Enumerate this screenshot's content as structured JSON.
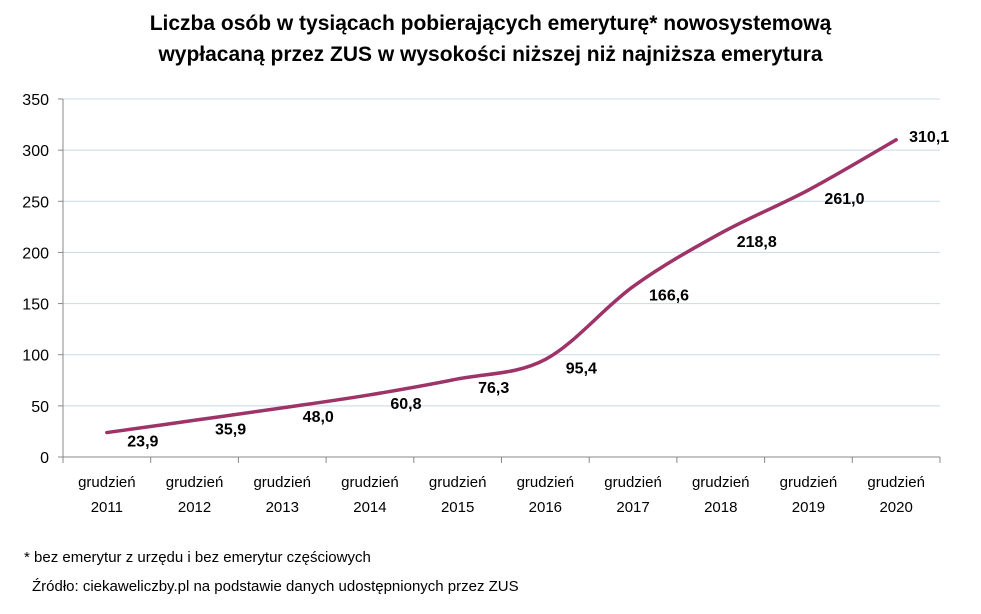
{
  "chart_data": {
    "type": "line",
    "title_line1": "Liczba osób w tysiącach pobierających emeryturę* nowosystemową",
    "title_line2": "wypłacaną przez ZUS w wysokości niższej niż najniższa emerytura",
    "categories": [
      [
        "grudzień",
        "2011"
      ],
      [
        "grudzień",
        "2012"
      ],
      [
        "grudzień",
        "2013"
      ],
      [
        "grudzień",
        "2014"
      ],
      [
        "grudzień",
        "2015"
      ],
      [
        "grudzień",
        "2016"
      ],
      [
        "grudzień",
        "2017"
      ],
      [
        "grudzień",
        "2018"
      ],
      [
        "grudzień",
        "2019"
      ],
      [
        "grudzień",
        "2020"
      ]
    ],
    "values": [
      23.9,
      35.9,
      48.0,
      60.8,
      76.3,
      95.4,
      166.6,
      218.8,
      261.0,
      310.1
    ],
    "data_labels": [
      "23,9",
      "35,9",
      "48,0",
      "60,8",
      "76,3",
      "95,4",
      "166,6",
      "218,8",
      "261,0",
      "310,1"
    ],
    "ylim": [
      0,
      350
    ],
    "yticks": [
      0,
      50,
      100,
      150,
      200,
      250,
      300,
      350
    ],
    "grid": true,
    "legend": "none",
    "line_color": "#9E3368",
    "grid_color": "#C9D8EC"
  },
  "footnote": "* bez emerytur z urzędu i bez emerytur częściowych",
  "source": "Źródło: ciekaweliczby.pl na podstawie danych udostępnionych przez ZUS"
}
